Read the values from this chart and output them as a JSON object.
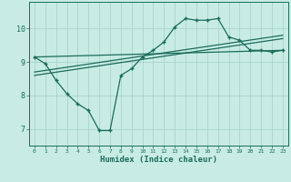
{
  "xlabel": "Humidex (Indice chaleur)",
  "bg_color": "#c8ece4",
  "grid_color": "#a8d4cc",
  "line_color": "#1a6b5a",
  "xlim": [
    -0.5,
    23.5
  ],
  "ylim": [
    6.5,
    10.8
  ],
  "yticks": [
    7,
    8,
    9,
    10
  ],
  "xticks": [
    0,
    1,
    2,
    3,
    4,
    5,
    6,
    7,
    8,
    9,
    10,
    11,
    12,
    13,
    14,
    15,
    16,
    17,
    18,
    19,
    20,
    21,
    22,
    23
  ],
  "series1_x": [
    0,
    1,
    2,
    3,
    4,
    5,
    6,
    7,
    8,
    9,
    10,
    11,
    12,
    13,
    14,
    15,
    16,
    17,
    18,
    19,
    20,
    21,
    22,
    23
  ],
  "series1_y": [
    9.15,
    8.95,
    8.45,
    8.05,
    7.75,
    7.55,
    6.95,
    6.95,
    8.6,
    8.8,
    9.15,
    9.35,
    9.6,
    10.05,
    10.3,
    10.25,
    10.25,
    10.3,
    9.75,
    9.65,
    9.35,
    9.35,
    9.3,
    9.35
  ],
  "line2_x": [
    0,
    23
  ],
  "line2_y": [
    9.15,
    9.35
  ],
  "line3_x": [
    0,
    23
  ],
  "line3_y": [
    8.6,
    9.7
  ],
  "line4_x": [
    0,
    23
  ],
  "line4_y": [
    8.7,
    9.8
  ]
}
